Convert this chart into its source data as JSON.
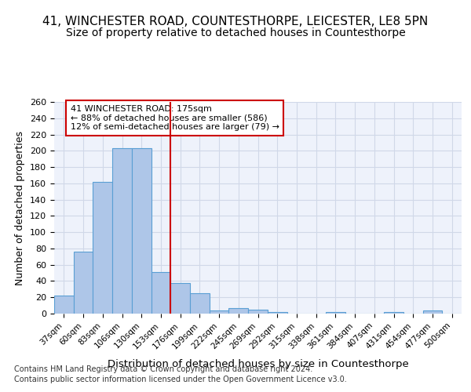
{
  "title": "41, WINCHESTER ROAD, COUNTESTHORPE, LEICESTER, LE8 5PN",
  "subtitle": "Size of property relative to detached houses in Countesthorpe",
  "xlabel": "Distribution of detached houses by size in Countesthorpe",
  "ylabel": "Number of detached properties",
  "bins": [
    "37sqm",
    "60sqm",
    "83sqm",
    "106sqm",
    "130sqm",
    "153sqm",
    "176sqm",
    "199sqm",
    "222sqm",
    "245sqm",
    "269sqm",
    "292sqm",
    "315sqm",
    "338sqm",
    "361sqm",
    "384sqm",
    "407sqm",
    "431sqm",
    "454sqm",
    "477sqm",
    "500sqm"
  ],
  "bar_values": [
    22,
    76,
    162,
    203,
    203,
    51,
    38,
    25,
    4,
    7,
    5,
    2,
    0,
    0,
    2,
    0,
    0,
    2,
    0,
    4,
    0
  ],
  "bar_color": "#aec6e8",
  "bar_edge_color": "#5a9fd4",
  "property_line_color": "#cc0000",
  "annotation_text": "41 WINCHESTER ROAD: 175sqm\n← 88% of detached houses are smaller (586)\n12% of semi-detached houses are larger (79) →",
  "annotation_box_color": "#cc0000",
  "annotation_text_color": "#000000",
  "ylim": [
    0,
    260
  ],
  "yticks": [
    0,
    20,
    40,
    60,
    80,
    100,
    120,
    140,
    160,
    180,
    200,
    220,
    240,
    260
  ],
  "grid_color": "#d0d8e8",
  "bg_color": "#eef2fb",
  "footer1": "Contains HM Land Registry data © Crown copyright and database right 2024.",
  "footer2": "Contains public sector information licensed under the Open Government Licence v3.0.",
  "title_fontsize": 11,
  "subtitle_fontsize": 10,
  "axis_label_fontsize": 9,
  "tick_fontsize": 8
}
